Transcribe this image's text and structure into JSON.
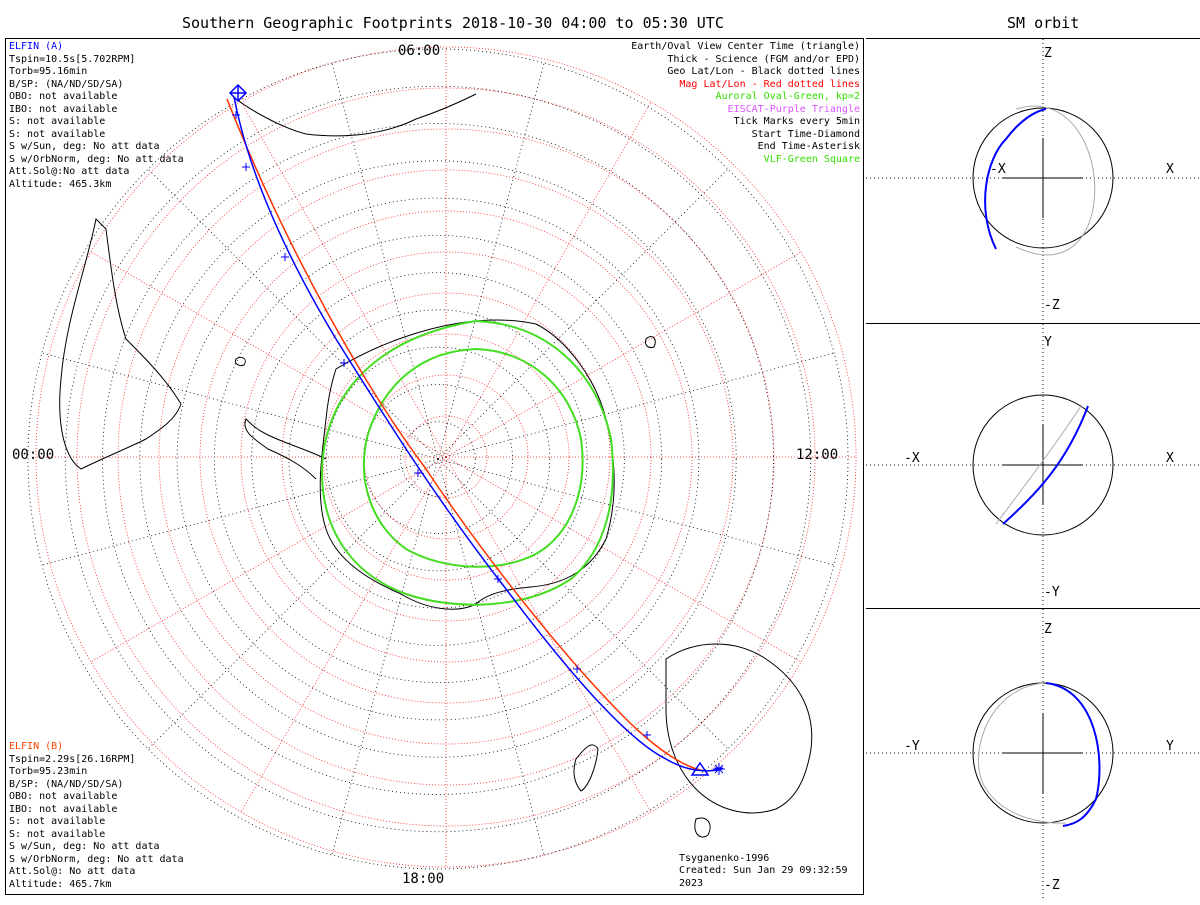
{
  "title": "Southern Geographic Footprints 2018-10-30 04:00 to 05:30 UTC",
  "side_title": "SM orbit",
  "hour_labels": {
    "top": "06:00",
    "left": "00:00",
    "right": "12:00",
    "bottom": "18:00"
  },
  "elfin_a": {
    "name": "ELFIN (A)",
    "color": "#0000ff",
    "lines": [
      "Tspin=10.5s[5.702RPM]",
      "Torb=95.16min",
      "B/SP: (NA/ND/SD/SA)",
      "OBO: not available",
      "IBO: not available",
      "S: not available",
      "S: not available",
      "S w/Sun, deg: No att data",
      "S w/OrbNorm, deg: No att data",
      "Att.Sol@:No att data",
      "Altitude: 465.3km"
    ]
  },
  "elfin_b": {
    "name": "ELFIN (B)",
    "color": "#ff4500",
    "lines": [
      "Tspin=2.29s[26.16RPM]",
      "Torb=95.23min",
      "B/SP: (NA/ND/SD/SA)",
      "OBO: not available",
      "IBO: not available",
      "S: not available",
      "S: not available",
      "S w/Sun, deg: No att data",
      "S w/OrbNorm, deg: No att data",
      "Att.Sol@: No att data",
      "Altitude: 465.7km"
    ]
  },
  "legend": [
    {
      "text": "Earth/Oval View Center Time (triangle)",
      "color": "#000000"
    },
    {
      "text": "Thick - Science (FGM and/or EPD)",
      "color": "#000000"
    },
    {
      "text": "Geo Lat/Lon - Black dotted lines",
      "color": "#000000"
    },
    {
      "text": "Mag Lat/Lon - Red dotted lines",
      "color": "#ff0000"
    },
    {
      "text": "Auroral Oval-Green, kp=2",
      "color": "#33dd00"
    },
    {
      "text": "EISCAT-Purple Triangle",
      "color": "#dd55ff"
    },
    {
      "text": "Tick Marks every 5min",
      "color": "#000000"
    },
    {
      "text": "Start Time-Diamond",
      "color": "#000000"
    },
    {
      "text": "End Time-Asterisk",
      "color": "#000000"
    },
    {
      "text": "VLF-Green Square",
      "color": "#33dd00"
    }
  ],
  "footer": {
    "model": "Tsyganenko-1996",
    "created": "Created: Sun Jan 29 09:32:59 2023"
  },
  "orbit_panels": [
    {
      "top": "Z",
      "bottom": "-Z",
      "left": "-X",
      "right": "X"
    },
    {
      "top": "Y",
      "bottom": "-Y",
      "left": "-X",
      "right": "X"
    },
    {
      "top": "Z",
      "bottom": "-Z",
      "left": "-Y",
      "right": "Y"
    }
  ],
  "colors": {
    "elfin_a_track": "#0000ff",
    "elfin_b_track": "#ff3300",
    "auroral_oval": "#44dd22",
    "mag_grid": "#ff2222",
    "geo_grid": "#000000",
    "orbit_shadow": "#aaaaaa"
  }
}
